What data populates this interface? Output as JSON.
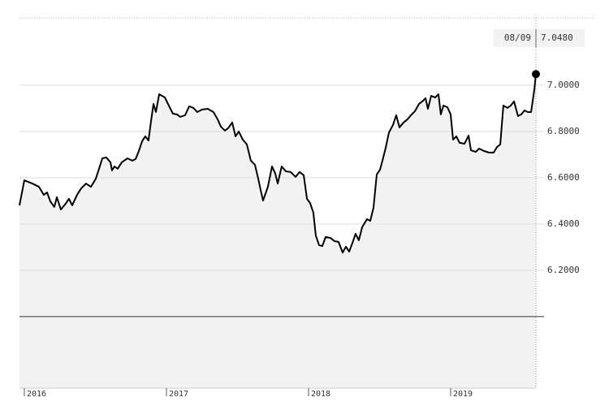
{
  "chart_data": {
    "type": "line",
    "color": "#000000",
    "fill_color": "#f2f2f2",
    "x": [
      2015.966,
      2016.0,
      2016.057,
      2016.103,
      2016.137,
      2016.16,
      2016.183,
      2016.211,
      2016.229,
      2016.257,
      2016.291,
      2016.314,
      2016.337,
      2016.371,
      2016.4,
      2016.434,
      2016.469,
      2016.503,
      2016.526,
      2016.549,
      2016.577,
      2016.606,
      2016.617,
      2016.634,
      2016.657,
      2016.686,
      2016.726,
      2016.76,
      2016.783,
      2016.806,
      2016.829,
      2016.851,
      2016.874,
      2016.891,
      2016.909,
      2016.926,
      2016.949,
      2016.989,
      2017.017,
      2017.046,
      2017.074,
      2017.097,
      2017.131,
      2017.16,
      2017.189,
      2017.217,
      2017.251,
      2017.291,
      2017.331,
      2017.36,
      2017.383,
      2017.411,
      2017.434,
      2017.463,
      2017.486,
      2017.509,
      2017.537,
      2017.566,
      2017.594,
      2017.623,
      2017.646,
      2017.663,
      2017.68,
      2017.714,
      2017.743,
      2017.766,
      2017.783,
      2017.811,
      2017.84,
      2017.874,
      2017.909,
      2017.937,
      2017.966,
      2017.989,
      2018.011,
      2018.034,
      2018.051,
      2018.074,
      2018.097,
      2018.12,
      2018.154,
      2018.183,
      2018.211,
      2018.24,
      2018.263,
      2018.286,
      2018.309,
      2018.331,
      2018.354,
      2018.377,
      2018.411,
      2018.434,
      2018.457,
      2018.48,
      2018.503,
      2018.52,
      2018.543,
      2018.566,
      2018.594,
      2018.617,
      2018.64,
      2018.669,
      2018.697,
      2018.72,
      2018.749,
      2018.777,
      2018.806,
      2018.823,
      2018.84,
      2018.863,
      2018.891,
      2018.914,
      2018.931,
      2018.949,
      2018.977,
      2019.0,
      2019.017,
      2019.04,
      2019.063,
      2019.097,
      2019.126,
      2019.143,
      2019.177,
      2019.2,
      2019.234,
      2019.269,
      2019.303,
      2019.326,
      2019.349,
      2019.371,
      2019.4,
      2019.423,
      2019.446,
      2019.474,
      2019.497,
      2019.52,
      2019.543,
      2019.566,
      2019.589,
      2019.6
    ],
    "values": [
      6.481,
      6.589,
      6.575,
      6.561,
      6.526,
      6.537,
      6.498,
      6.474,
      6.516,
      6.463,
      6.488,
      6.509,
      6.481,
      6.526,
      6.554,
      6.575,
      6.561,
      6.596,
      6.639,
      6.684,
      6.688,
      6.667,
      6.632,
      6.649,
      6.639,
      6.667,
      6.684,
      6.674,
      6.681,
      6.716,
      6.758,
      6.779,
      6.761,
      6.842,
      6.919,
      6.884,
      6.961,
      6.947,
      6.912,
      6.877,
      6.874,
      6.863,
      6.87,
      6.909,
      6.902,
      6.884,
      6.895,
      6.898,
      6.884,
      6.853,
      6.821,
      6.804,
      6.814,
      6.839,
      6.779,
      6.8,
      6.765,
      6.744,
      6.674,
      6.656,
      6.596,
      6.547,
      6.502,
      6.561,
      6.649,
      6.618,
      6.575,
      6.649,
      6.628,
      6.625,
      6.604,
      6.625,
      6.611,
      6.509,
      6.491,
      6.449,
      6.351,
      6.309,
      6.305,
      6.344,
      6.34,
      6.326,
      6.323,
      6.277,
      6.302,
      6.281,
      6.319,
      6.358,
      6.33,
      6.386,
      6.421,
      6.414,
      6.47,
      6.614,
      6.635,
      6.674,
      6.73,
      6.796,
      6.828,
      6.87,
      6.818,
      6.839,
      6.853,
      6.87,
      6.888,
      6.919,
      6.933,
      6.944,
      6.898,
      6.954,
      6.947,
      6.961,
      6.874,
      6.912,
      6.905,
      6.874,
      6.765,
      6.779,
      6.751,
      6.747,
      6.782,
      6.719,
      6.712,
      6.726,
      6.716,
      6.709,
      6.709,
      6.733,
      6.744,
      6.912,
      6.902,
      6.912,
      6.93,
      6.867,
      6.874,
      6.891,
      6.884,
      6.884,
      6.982,
      7.048
    ],
    "xlim": [
      2015.966,
      2019.6
    ],
    "xticks": [
      2016,
      2017,
      2018,
      2019
    ],
    "ylim": [
      5.691,
      7.291
    ],
    "yticks": [
      {
        "value": 6.2,
        "label": "6.2000"
      },
      {
        "value": 6.4,
        "label": "6.4000"
      },
      {
        "value": 6.6,
        "label": "6.6000"
      },
      {
        "value": 6.8,
        "label": "6.8000"
      },
      {
        "value": 7.0,
        "label": "7.0000"
      }
    ],
    "baseline": 6.0,
    "grid": true,
    "last_label": {
      "date": "08/09",
      "value": "7.0480"
    }
  }
}
